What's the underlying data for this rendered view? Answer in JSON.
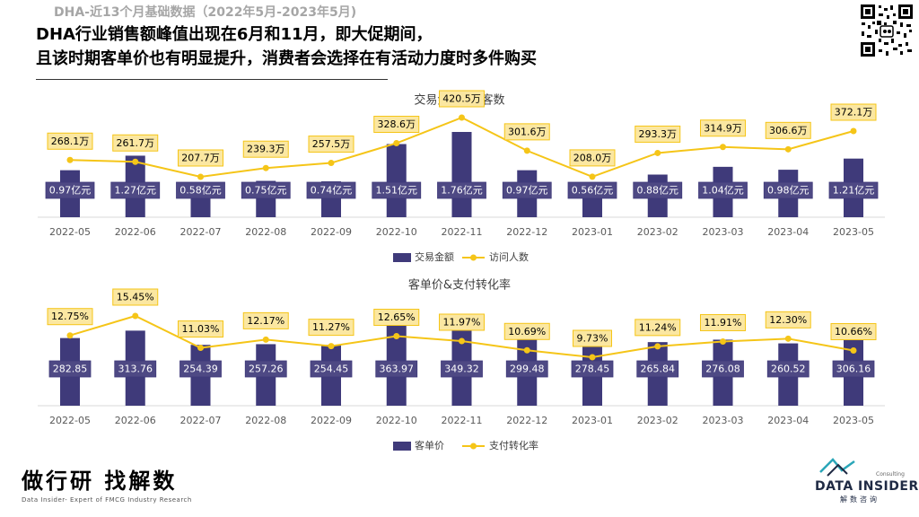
{
  "header": {
    "subtitle": "DHA-近13个月基础数据（2022年5月-2023年5月)",
    "headline_line1": "DHA行业销售额峰值出现在6月和11月，即大促期间，",
    "headline_line2": "且该时期客单价也有明显提升，消费者会选择在有活动力度时多件购买"
  },
  "footer": {
    "brand": "做行研 找解数",
    "tagline": "Data Insider- Expert of FMCG Industry Research",
    "logo_name": "DATA INSIDER",
    "logo_sub": "解数咨询",
    "logo_consulting": "Consulting"
  },
  "colors": {
    "bar": "#3f3a7a",
    "line": "#f5c518",
    "label_fill": "#fbe7a1",
    "label_border": "#f5c518",
    "axis_text": "#595959"
  },
  "chart_data": [
    {
      "type": "bar",
      "title": "交易金额&访客数",
      "categories": [
        "2022-05",
        "2022-06",
        "2022-07",
        "2022-08",
        "2022-09",
        "2022-10",
        "2022-11",
        "2022-12",
        "2023-01",
        "2023-02",
        "2023-03",
        "2023-04",
        "2023-05"
      ],
      "series": [
        {
          "name": "交易金额",
          "type": "bar",
          "values": [
            0.97,
            1.27,
            0.58,
            0.75,
            0.74,
            1.51,
            1.76,
            0.97,
            0.56,
            0.88,
            1.04,
            0.98,
            1.21
          ],
          "labels": [
            "0.97亿元",
            "1.27亿元",
            "0.58亿元",
            "0.75亿元",
            "0.74亿元",
            "1.51亿元",
            "1.76亿元",
            "0.97亿元",
            "0.56亿元",
            "0.88亿元",
            "1.04亿元",
            "0.98亿元",
            "1.21亿元"
          ]
        },
        {
          "name": "访问人数",
          "type": "line",
          "values": [
            268.1,
            261.7,
            207.7,
            239.3,
            257.5,
            328.6,
            420.5,
            301.6,
            208.0,
            293.3,
            314.9,
            306.6,
            372.1
          ],
          "labels": [
            "268.1万",
            "261.7万",
            "207.7万",
            "239.3万",
            "257.5万",
            "328.6万",
            "420.5万",
            "301.6万",
            "208.0万",
            "293.3万",
            "314.9万",
            "306.6万",
            "372.1万"
          ]
        }
      ],
      "legend": "bottom"
    },
    {
      "type": "bar",
      "title": "客单价&支付转化率",
      "categories": [
        "2022-05",
        "2022-06",
        "2022-07",
        "2022-08",
        "2022-09",
        "2022-10",
        "2022-11",
        "2022-12",
        "2023-01",
        "2023-02",
        "2023-03",
        "2023-04",
        "2023-05"
      ],
      "series": [
        {
          "name": "客单价",
          "type": "bar",
          "values": [
            282.85,
            313.76,
            254.39,
            257.26,
            254.45,
            363.97,
            349.32,
            299.48,
            278.45,
            265.84,
            276.08,
            260.52,
            306.16
          ],
          "labels": [
            "282.85",
            "313.76",
            "254.39",
            "257.26",
            "254.45",
            "363.97",
            "349.32",
            "299.48",
            "278.45",
            "265.84",
            "276.08",
            "260.52",
            "306.16"
          ]
        },
        {
          "name": "支付转化率",
          "type": "line",
          "values": [
            12.75,
            15.45,
            11.03,
            12.17,
            11.27,
            12.65,
            11.97,
            10.69,
            9.73,
            11.24,
            11.91,
            12.3,
            10.66
          ],
          "labels": [
            "12.75%",
            "15.45%",
            "11.03%",
            "12.17%",
            "11.27%",
            "12.65%",
            "11.97%",
            "10.69%",
            "9.73%",
            "11.24%",
            "11.91%",
            "12.30%",
            "10.66%"
          ]
        }
      ],
      "legend": "bottom"
    }
  ]
}
